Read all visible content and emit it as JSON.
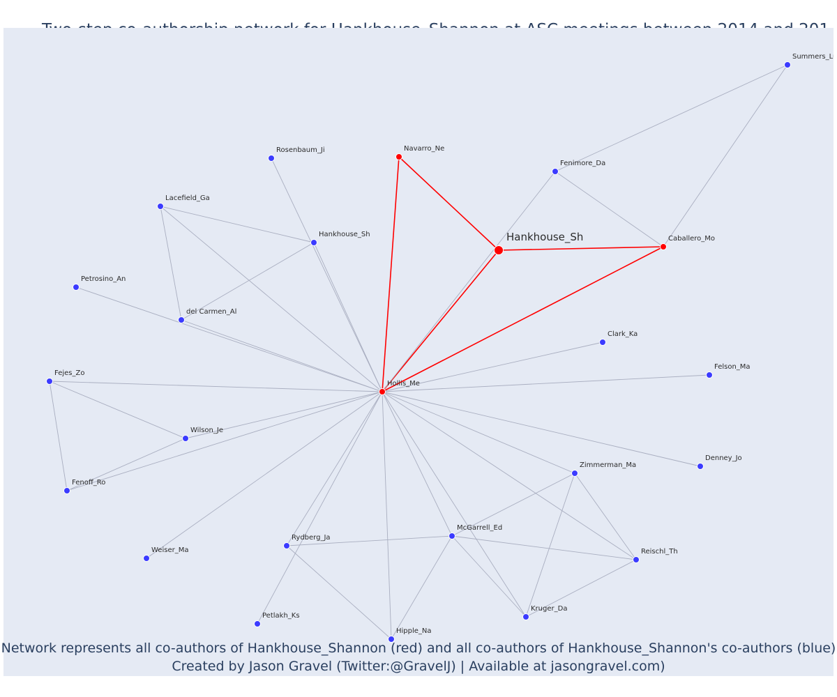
{
  "title": "Two-step co-authorship network for Hankhouse_Shannon at ASC meetings between 2014 and 201",
  "caption_line1": "Network represents all co-authors of Hankhouse_Shannon (red) and all co-authors of Hankhouse_Shannon's co-authors (blue)",
  "caption_line2": "Created by Jason Gravel (Twitter:@GravelJ) | Available at jasongravel.com)",
  "colors": {
    "background": "#e5eaf4",
    "first_degree": "#ff0000",
    "second_degree": "#3b3bff",
    "edge": "#a9aec0",
    "label": "#2b2b2b"
  },
  "nodes": [
    {
      "id": "Hankhouse_Sh_main",
      "label": "Hankhouse_Sh",
      "group": "focal"
    },
    {
      "id": "Navarro_Ne",
      "label": "Navarro_Ne",
      "group": "first"
    },
    {
      "id": "Caballero_Mo",
      "label": "Caballero_Mo",
      "group": "first"
    },
    {
      "id": "Hollis_Me",
      "label": "Hollis_Me",
      "group": "first"
    },
    {
      "id": "Summers_Lu",
      "label": "Summers_Lu",
      "group": "second"
    },
    {
      "id": "Fenimore_Da",
      "label": "Fenimore_Da",
      "group": "second"
    },
    {
      "id": "Rosenbaum_Ji",
      "label": "Rosenbaum_Ji",
      "group": "second"
    },
    {
      "id": "Lacefield_Ga",
      "label": "Lacefield_Ga",
      "group": "second"
    },
    {
      "id": "Hankhouse_Sh2",
      "label": "Hankhouse_Sh",
      "group": "second"
    },
    {
      "id": "Petrosino_An",
      "label": "Petrosino_An",
      "group": "second"
    },
    {
      "id": "del_Carmen_Al",
      "label": "del Carmen_Al",
      "group": "second"
    },
    {
      "id": "Clark_Ka",
      "label": "Clark_Ka",
      "group": "second"
    },
    {
      "id": "Felson_Ma",
      "label": "Felson_Ma",
      "group": "second"
    },
    {
      "id": "Fejes_Zo",
      "label": "Fejes_Zo",
      "group": "second"
    },
    {
      "id": "Wilson_Je",
      "label": "Wilson_Je",
      "group": "second"
    },
    {
      "id": "Fenoff_Ro",
      "label": "Fenoff_Ro",
      "group": "second"
    },
    {
      "id": "Denney_Jo",
      "label": "Denney_Jo",
      "group": "second"
    },
    {
      "id": "Zimmerman_Ma",
      "label": "Zimmerman_Ma",
      "group": "second"
    },
    {
      "id": "Weiser_Ma",
      "label": "Weiser_Ma",
      "group": "second"
    },
    {
      "id": "Rydberg_Ja",
      "label": "Rydberg_Ja",
      "group": "second"
    },
    {
      "id": "McGarrell_Ed",
      "label": "McGarrell_Ed",
      "group": "second"
    },
    {
      "id": "Reischl_Th",
      "label": "Reischl_Th",
      "group": "second"
    },
    {
      "id": "Petlakh_Ks",
      "label": "Petlakh_Ks",
      "group": "second"
    },
    {
      "id": "Kruger_Da",
      "label": "Kruger_Da",
      "group": "second"
    },
    {
      "id": "Hipple_Na",
      "label": "Hipple_Na",
      "group": "second"
    }
  ],
  "edges": [
    [
      "Hankhouse_Sh_main",
      "Navarro_Ne",
      "first"
    ],
    [
      "Hankhouse_Sh_main",
      "Caballero_Mo",
      "first"
    ],
    [
      "Hankhouse_Sh_main",
      "Hollis_Me",
      "first"
    ],
    [
      "Hollis_Me",
      "Navarro_Ne",
      "first"
    ],
    [
      "Hollis_Me",
      "Caballero_Mo",
      "first"
    ],
    [
      "Summers_Lu",
      "Fenimore_Da",
      "second"
    ],
    [
      "Summers_Lu",
      "Caballero_Mo",
      "second"
    ],
    [
      "Fenimore_Da",
      "Caballero_Mo",
      "second"
    ],
    [
      "Fenimore_Da",
      "Hollis_Me",
      "second"
    ],
    [
      "Rosenbaum_Ji",
      "Hollis_Me",
      "second"
    ],
    [
      "Lacefield_Ga",
      "Hankhouse_Sh2",
      "second"
    ],
    [
      "Lacefield_Ga",
      "del_Carmen_Al",
      "second"
    ],
    [
      "Lacefield_Ga",
      "Hollis_Me",
      "second"
    ],
    [
      "Hankhouse_Sh2",
      "del_Carmen_Al",
      "second"
    ],
    [
      "Hankhouse_Sh2",
      "Hollis_Me",
      "second"
    ],
    [
      "Petrosino_An",
      "Hollis_Me",
      "second"
    ],
    [
      "del_Carmen_Al",
      "Hollis_Me",
      "second"
    ],
    [
      "Clark_Ka",
      "Hollis_Me",
      "second"
    ],
    [
      "Felson_Ma",
      "Hollis_Me",
      "second"
    ],
    [
      "Fejes_Zo",
      "Hollis_Me",
      "second"
    ],
    [
      "Fejes_Zo",
      "Wilson_Je",
      "second"
    ],
    [
      "Fejes_Zo",
      "Fenoff_Ro",
      "second"
    ],
    [
      "Wilson_Je",
      "Hollis_Me",
      "second"
    ],
    [
      "Wilson_Je",
      "Fenoff_Ro",
      "second"
    ],
    [
      "Fenoff_Ro",
      "Hollis_Me",
      "second"
    ],
    [
      "Denney_Jo",
      "Hollis_Me",
      "second"
    ],
    [
      "Zimmerman_Ma",
      "Hollis_Me",
      "second"
    ],
    [
      "Zimmerman_Ma",
      "McGarrell_Ed",
      "second"
    ],
    [
      "Zimmerman_Ma",
      "Reischl_Th",
      "second"
    ],
    [
      "Zimmerman_Ma",
      "Kruger_Da",
      "second"
    ],
    [
      "Weiser_Ma",
      "Hollis_Me",
      "second"
    ],
    [
      "Rydberg_Ja",
      "Hollis_Me",
      "second"
    ],
    [
      "Rydberg_Ja",
      "McGarrell_Ed",
      "second"
    ],
    [
      "Rydberg_Ja",
      "Hipple_Na",
      "second"
    ],
    [
      "McGarrell_Ed",
      "Hollis_Me",
      "second"
    ],
    [
      "McGarrell_Ed",
      "Reischl_Th",
      "second"
    ],
    [
      "McGarrell_Ed",
      "Kruger_Da",
      "second"
    ],
    [
      "McGarrell_Ed",
      "Hipple_Na",
      "second"
    ],
    [
      "Reischl_Th",
      "Hollis_Me",
      "second"
    ],
    [
      "Reischl_Th",
      "Kruger_Da",
      "second"
    ],
    [
      "Petlakh_Ks",
      "Hollis_Me",
      "second"
    ],
    [
      "Kruger_Da",
      "Hollis_Me",
      "second"
    ],
    [
      "Hipple_Na",
      "Hollis_Me",
      "second"
    ]
  ]
}
